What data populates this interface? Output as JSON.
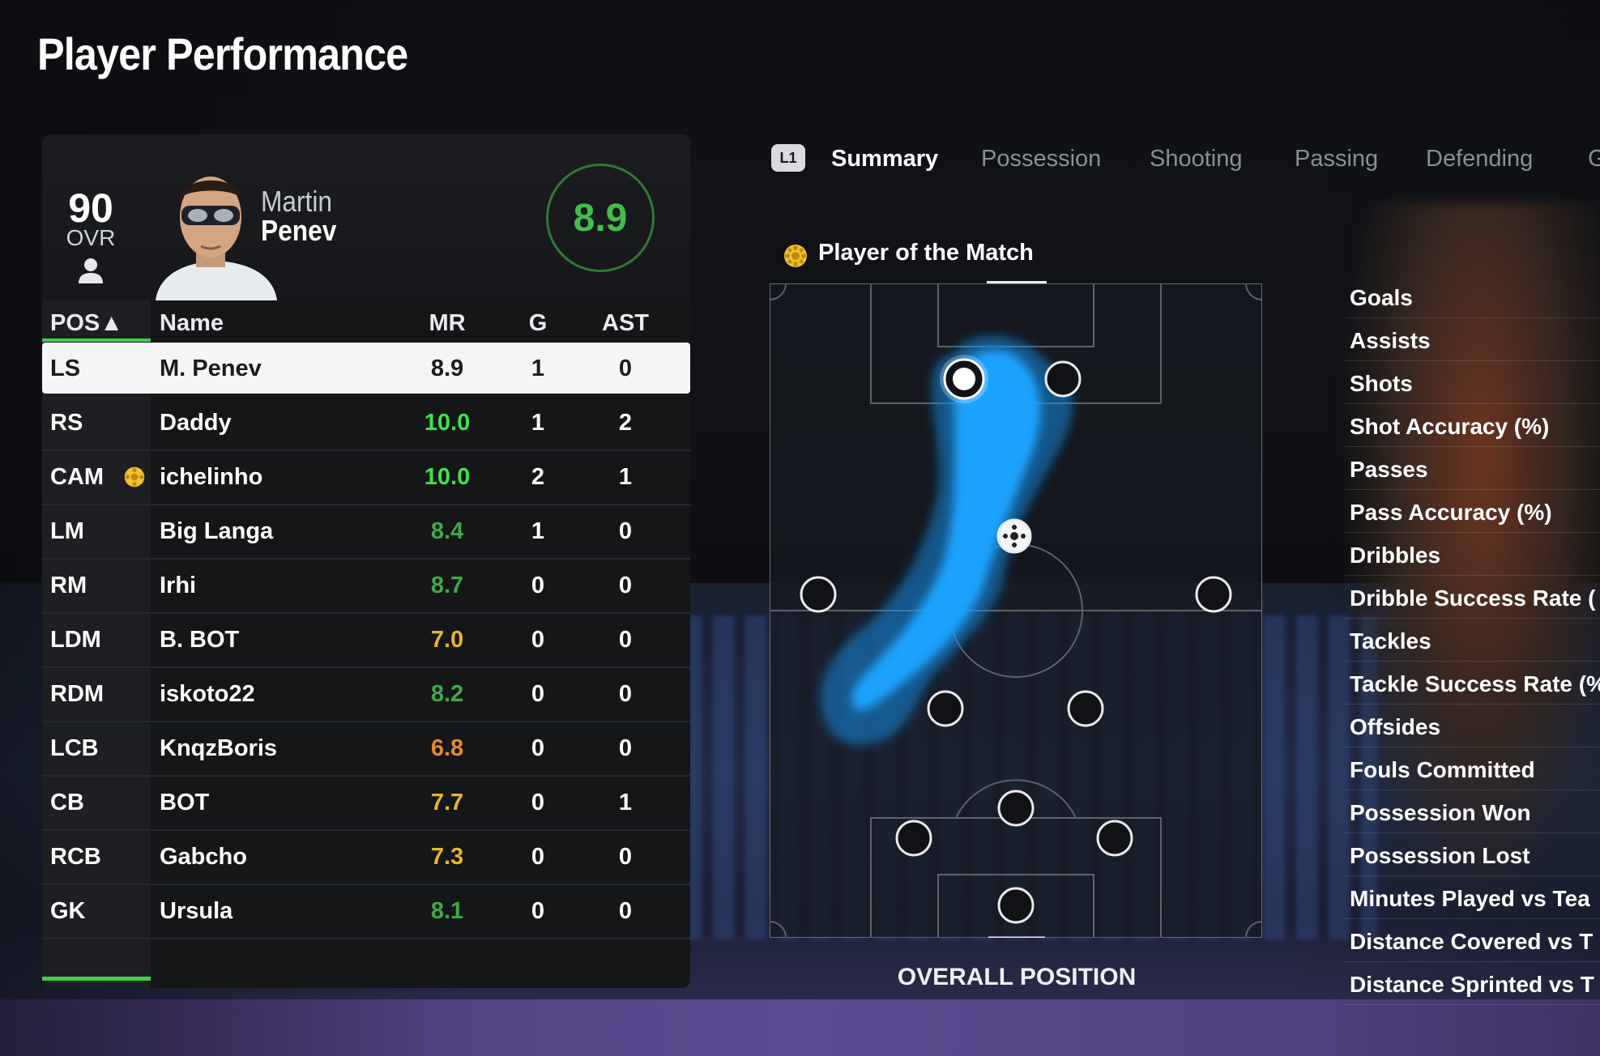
{
  "page_title": "Player Performance",
  "colors": {
    "accent_green": "#3fd04a",
    "rating_green": "#3fbf4a",
    "rating_yellow": "#e8b52b",
    "rating_orange": "#e58a2a",
    "heat_blue": "#1fa3ff"
  },
  "player_card": {
    "ovr_value": "90",
    "ovr_label": "OVR",
    "first_name": "Martin",
    "last_name": "Penev",
    "match_rating": "8.9"
  },
  "table": {
    "headers": {
      "pos": "POS▲",
      "name": "Name",
      "mr": "MR",
      "g": "G",
      "ast": "AST"
    },
    "rows": [
      {
        "pos": "LS",
        "name": "M. Penev",
        "mr": "8.9",
        "g": "1",
        "ast": "0",
        "mr_color": "#1a1b1d",
        "selected": true
      },
      {
        "pos": "RS",
        "name": "Daddy",
        "mr": "10.0",
        "g": "1",
        "ast": "2",
        "mr_color": "#3fe24c"
      },
      {
        "pos": "CAM",
        "name": "ichelinho",
        "mr": "10.0",
        "g": "2",
        "ast": "1",
        "mr_color": "#3fe24c",
        "potm": true
      },
      {
        "pos": "LM",
        "name": "Big Langa",
        "mr": "8.4",
        "g": "1",
        "ast": "0",
        "mr_color": "#3faa45"
      },
      {
        "pos": "RM",
        "name": "Irhi",
        "mr": "8.7",
        "g": "0",
        "ast": "0",
        "mr_color": "#3faa45"
      },
      {
        "pos": "LDM",
        "name": "B. BOT",
        "mr": "7.0",
        "g": "0",
        "ast": "0",
        "mr_color": "#e8b52b"
      },
      {
        "pos": "RDM",
        "name": "iskoto22",
        "mr": "8.2",
        "g": "0",
        "ast": "0",
        "mr_color": "#3faa45"
      },
      {
        "pos": "LCB",
        "name": "KnqzBoris",
        "mr": "6.8",
        "g": "0",
        "ast": "0",
        "mr_color": "#e58a2a"
      },
      {
        "pos": "CB",
        "name": "BOT",
        "mr": "7.7",
        "g": "0",
        "ast": "1",
        "mr_color": "#e8b52b"
      },
      {
        "pos": "RCB",
        "name": "Gabcho",
        "mr": "7.3",
        "g": "0",
        "ast": "0",
        "mr_color": "#e8b52b"
      },
      {
        "pos": "GK",
        "name": "Ursula",
        "mr": "8.1",
        "g": "0",
        "ast": "0",
        "mr_color": "#3faa45"
      }
    ]
  },
  "tabs": {
    "button_hint": "L1",
    "items": [
      "Summary",
      "Possession",
      "Shooting",
      "Passing",
      "Defending",
      "G"
    ],
    "active_index": 0
  },
  "pitch": {
    "player_of_the_match_label": "Player of the Match",
    "caption": "OVERALL POSITION"
  },
  "stats_labels": [
    "Goals",
    "Assists",
    "Shots",
    "Shot Accuracy (%)",
    "Passes",
    "Pass Accuracy (%)",
    "Dribbles",
    "Dribble Success Rate (",
    "Tackles",
    "Tackle Success Rate (%",
    "Offsides",
    "Fouls Committed",
    "Possession Won",
    "Possession Lost",
    "Minutes Played vs Tea",
    "Distance Covered vs T",
    "Distance Sprinted vs T"
  ]
}
